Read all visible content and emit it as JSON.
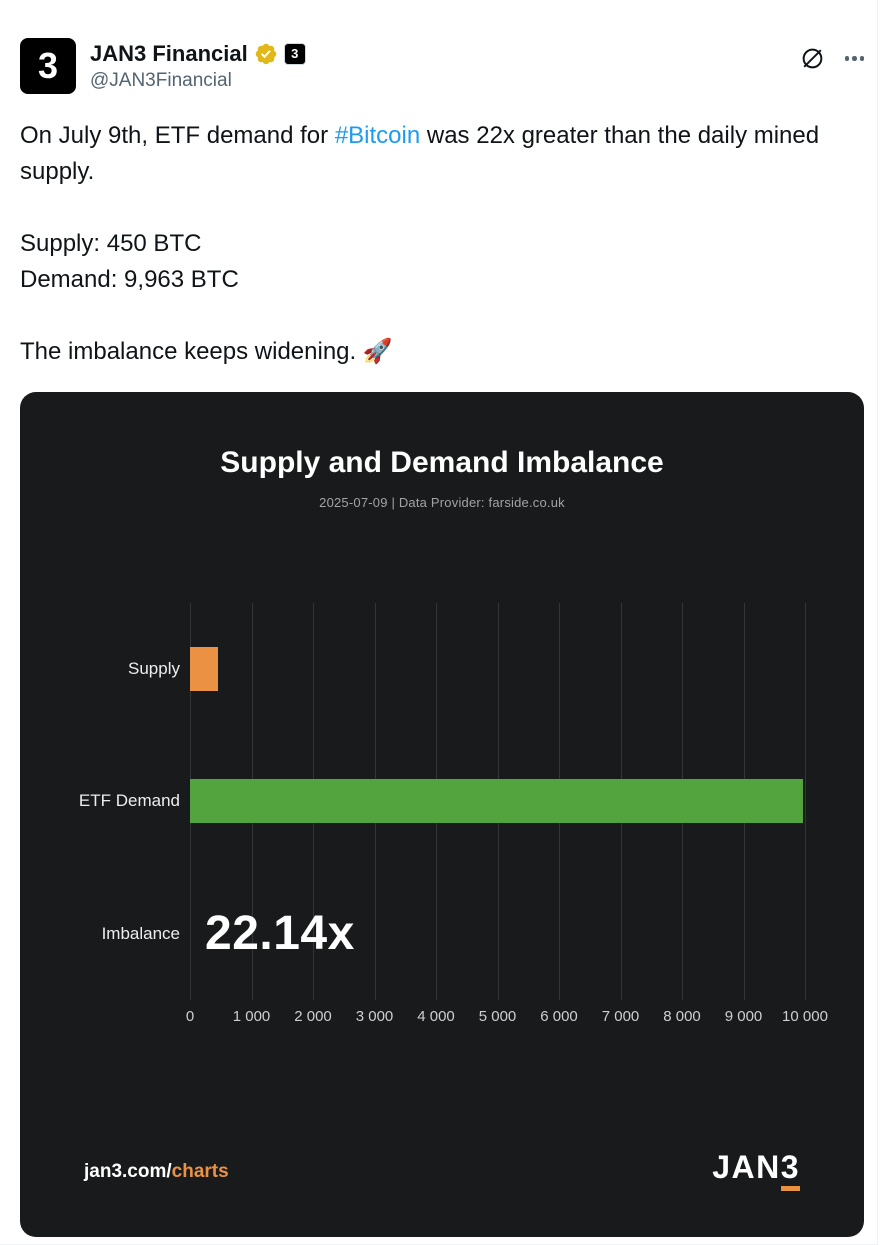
{
  "colors": {
    "link_blue": "#1D9BF0",
    "gold_badge": "#E2B719",
    "accent_orange": "#EA9143",
    "bar_green": "#53A43F",
    "card_bg": "#191A1C"
  },
  "tweet": {
    "author": {
      "name": "JAN3 Financial",
      "handle": "@JAN3Financial",
      "avatar_glyph": "3",
      "affiliate_glyph": "3"
    },
    "header_icons": {
      "grok_icon": "slashed-circle",
      "more_icon": "ellipsis-dots"
    },
    "body": {
      "p1_before": "On July 9th, ETF demand for ",
      "p1_hashtag": "#Bitcoin",
      "p1_after": " was 22x greater than the daily mined supply.",
      "supply_line": "Supply: 450 BTC",
      "demand_line": "Demand: 9,963 BTC",
      "closing_line": "The imbalance keeps widening. 🚀"
    }
  },
  "chart_card": {
    "title": "Supply and Demand Imbalance",
    "subtitle": "2025-07-09  |  Data Provider: farside.co.uk",
    "footer_site_prefix": "jan3.com/",
    "footer_site_suffix": "charts",
    "logo_prefix": "JAN",
    "logo_suffix": "3"
  },
  "chart_data": {
    "type": "bar",
    "orientation": "horizontal",
    "title": "Supply and Demand Imbalance",
    "subtitle": "2025-07-09 | Data Provider: farside.co.uk",
    "categories": [
      "Supply",
      "ETF Demand",
      "Imbalance"
    ],
    "values": [
      450,
      9963,
      null
    ],
    "imbalance_label": "22.14x",
    "imbalance_ratio": 22.14,
    "xlabel": "",
    "ylabel": "",
    "xlim": [
      0,
      10000
    ],
    "xticks": [
      0,
      1000,
      2000,
      3000,
      4000,
      5000,
      6000,
      7000,
      8000,
      9000,
      10000
    ],
    "tick_labels": [
      "0",
      "1 000",
      "2 000",
      "3 000",
      "4 000",
      "5 000",
      "6 000",
      "7 000",
      "8 000",
      "9 000",
      "10 000"
    ],
    "bar_colors": {
      "Supply": "#EA9143",
      "ETF Demand": "#53A43F"
    },
    "grid": "vertical",
    "legend": false
  }
}
